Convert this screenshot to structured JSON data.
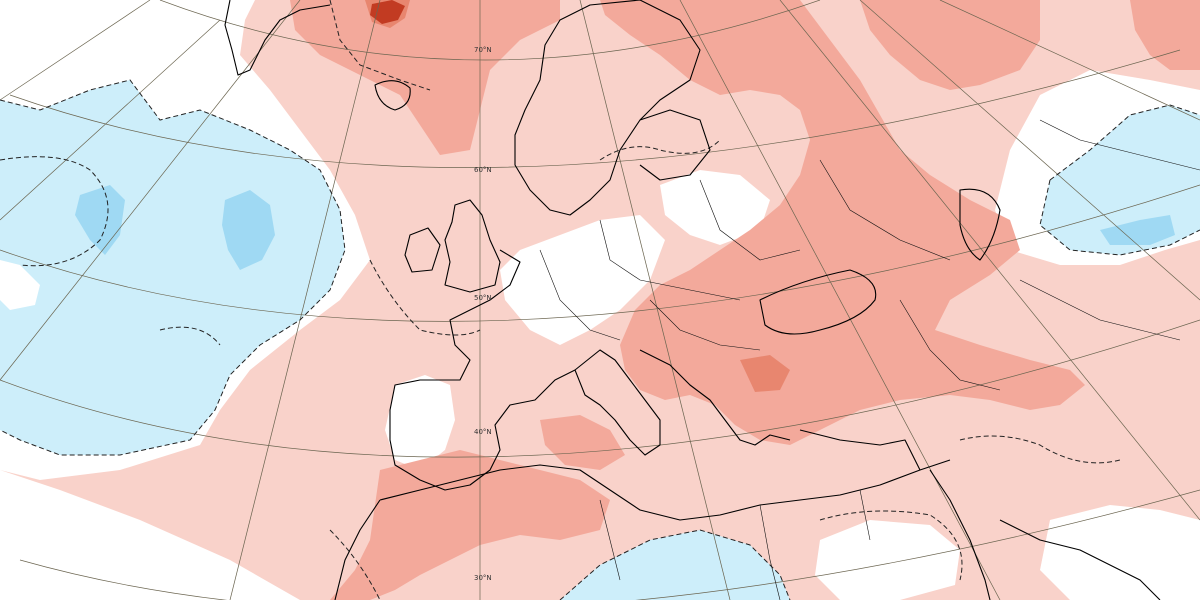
{
  "map": {
    "latitude_labels": [
      "70°N",
      "60°N",
      "50°N",
      "40°N",
      "30°N"
    ],
    "colors": {
      "background": "#ffffff",
      "cold_weak": "#cdeefa",
      "cold_strong": "#9fd9f3",
      "warm_weak": "#f9d2ca",
      "warm_mid": "#f3a99b",
      "warm_strong": "#e8866f",
      "warm_extreme": "#c23b22"
    }
  }
}
